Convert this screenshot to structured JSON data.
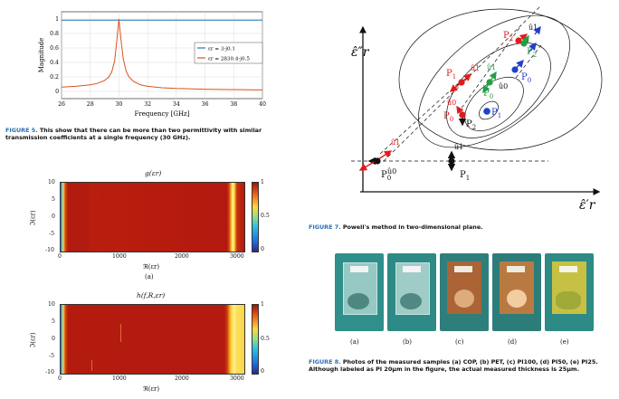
{
  "figure5": {
    "caption_label": "FIGURE 5.",
    "caption_text": "This show that there can be more than two permittivity with similar transmission coefficients at a single frequency (30 GHz).",
    "chart_data": {
      "type": "line",
      "title": "",
      "xlabel": "Frequency [GHz]",
      "ylabel": "Magnitude",
      "xlim": [
        26,
        40
      ],
      "ylim": [
        -0.1,
        1.1
      ],
      "xticks": [
        26,
        28,
        30,
        32,
        34,
        36,
        38,
        40
      ],
      "yticks": [
        0,
        0.2,
        0.4,
        0.6,
        0.8,
        1
      ],
      "series": [
        {
          "name": "εr = 3-j0.1",
          "color": "#1f77b4",
          "x": [
            26,
            40
          ],
          "y": [
            0.985,
            0.985
          ]
        },
        {
          "name": "εr = 2830.4-j0.5",
          "color": "#d95319",
          "x": [
            26,
            27,
            28,
            28.5,
            29,
            29.3,
            29.5,
            29.7,
            29.85,
            30,
            30.15,
            30.3,
            30.5,
            30.7,
            31,
            31.5,
            32,
            33,
            34,
            36,
            38,
            40
          ],
          "y": [
            0.06,
            0.07,
            0.09,
            0.11,
            0.15,
            0.2,
            0.27,
            0.42,
            0.7,
            1.0,
            0.7,
            0.45,
            0.28,
            0.2,
            0.14,
            0.09,
            0.07,
            0.05,
            0.04,
            0.03,
            0.025,
            0.02
          ]
        }
      ]
    }
  },
  "figure6": {
    "top": {
      "title": "g(εr)",
      "xlabel": "ℜ(εr)",
      "ylabel": "ℑ(εr)",
      "sublabel": "(a)",
      "xticks": [
        "0",
        "1000",
        "2000",
        "3000"
      ],
      "yticks": [
        "10",
        "5",
        "0",
        "-5",
        "-10"
      ],
      "cbar_ticks": [
        "1",
        "0.5",
        "0"
      ]
    },
    "bottom": {
      "title": "h(f,R,εr)",
      "xlabel": "ℜ(εr)",
      "ylabel": "ℑ(εr)",
      "xticks": [
        "0",
        "1000",
        "2000",
        "3000"
      ],
      "yticks": [
        "10",
        "5",
        "0",
        "-5",
        "-10"
      ],
      "cbar_ticks": [
        "1",
        "0.5",
        "0"
      ]
    }
  },
  "figure7": {
    "caption_label": "FIGURE 7.",
    "caption_text": "Powell's method in two-dimensional plane.",
    "axis_x": "ε̂′r",
    "axis_y": "ε̂″r",
    "points": [
      {
        "label": "P",
        "sub": "0",
        "color": "#111111"
      },
      {
        "label": "P",
        "sub": "1",
        "color": "#111111"
      },
      {
        "label": "P",
        "sub": "0",
        "color": "#e31a1c"
      },
      {
        "label": "P",
        "sub": "1",
        "color": "#e31a1c"
      },
      {
        "label": "P",
        "sub": "2",
        "color": "#111111"
      },
      {
        "label": "P",
        "sub": "2",
        "color": "#e31a1c"
      },
      {
        "label": "P",
        "sub": "0",
        "color": "#22a045"
      },
      {
        "label": "P",
        "sub": "1",
        "color": "#1f3fcf"
      },
      {
        "label": "P",
        "sub": "0",
        "color": "#1f3fcf"
      },
      {
        "label": "P",
        "sub": "2",
        "color": "#22a045"
      }
    ],
    "vectors": [
      "û0",
      "û1"
    ]
  },
  "figure8": {
    "caption_label": "FIGURE 8.",
    "caption_text": "Photos of the measured samples (a) COP, (b) PET, (c) PI100, (d) PI50, (e) PI25. Although labeled as PI 20μm in the figure, the actual measured thickness is 25μm.",
    "photos": [
      {
        "label": "(a)",
        "bg": "#2f8f8a",
        "sample": "#a9d4cf"
      },
      {
        "label": "(b)",
        "bg": "#2d8a86",
        "sample": "#b3d8d2"
      },
      {
        "label": "(c)",
        "bg": "#2e7f7c",
        "sample": "#b8622f"
      },
      {
        "label": "(d)",
        "bg": "#2c7c79",
        "sample": "#c97a3c"
      },
      {
        "label": "(e)",
        "bg": "#2e8a84",
        "sample": "#d7c73d"
      }
    ]
  }
}
